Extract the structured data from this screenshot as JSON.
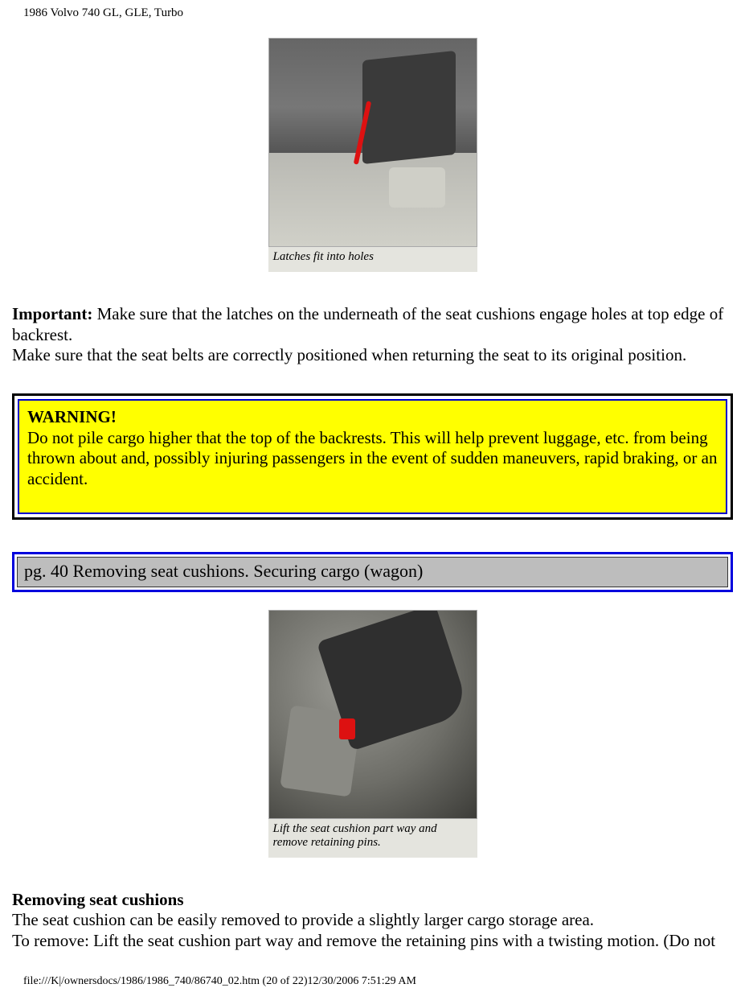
{
  "header": {
    "title": "1986 Volvo 740 GL, GLE, Turbo"
  },
  "figure1": {
    "caption": "Latches fit into holes"
  },
  "important": {
    "label": "Important:",
    "line1": " Make sure that the latches on the underneath of the seat cushions engage holes at top edge of backrest.",
    "line2": "Make sure that the seat belts are correctly positioned when returning the seat to its original position."
  },
  "warning": {
    "title": "WARNING!",
    "body": "Do not pile cargo higher that the top of the backrests. This will help prevent luggage, etc. from being thrown about and, possibly injuring passengers in the event of sudden maneuvers, rapid braking, or an accident."
  },
  "page_heading": {
    "text": "pg. 40 Removing seat cushions. Securing cargo (wagon)"
  },
  "figure2": {
    "caption": "Lift the seat cushion part way and remove retaining pins."
  },
  "section": {
    "title": "Removing seat cushions",
    "line1": "The seat cushion can be easily removed to provide a slightly larger cargo storage area.",
    "line2": "To remove: Lift the seat cushion part way and remove the retaining pins with a twisting motion. (Do not"
  },
  "footer": {
    "text": "file:///K|/ownersdocs/1986/1986_740/86740_02.htm (20 of 22)12/30/2006 7:51:29 AM"
  },
  "colors": {
    "warning_bg": "#ffff00",
    "warning_border_outer": "#000000",
    "warning_border_inner": "#0000cc",
    "pagehead_border": "#0000dd",
    "pagehead_bg": "#bdbdbd",
    "highlight_red": "#d11"
  }
}
